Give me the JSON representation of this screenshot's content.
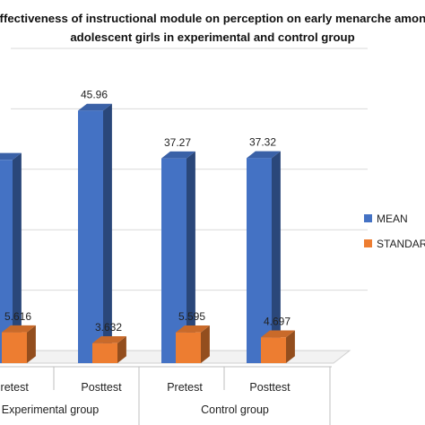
{
  "chart_data": {
    "type": "bar",
    "title_line_1": "Effectiveness of instructional module on perception on early menarche among",
    "title_line_2": "adolescent girls in experimental and control group",
    "categories": [
      "Pretest",
      "Posttest",
      "Pretest",
      "Posttest"
    ],
    "groups": [
      {
        "label": "Experimental group",
        "categories": [
          "Pretest",
          "Posttest"
        ]
      },
      {
        "label": "Control group",
        "categories": [
          "Pretest",
          "Posttest"
        ]
      }
    ],
    "series": [
      {
        "name": "MEAN",
        "color": "#4472c4",
        "values": [
          37.0,
          45.96,
          37.27,
          37.32
        ]
      },
      {
        "name": "STANDARD DEVIATION",
        "color": "#ed7d31",
        "values": [
          5.616,
          3.632,
          5.595,
          4.697
        ]
      }
    ],
    "data_labels": [
      [
        "",
        "45.96",
        "37.27",
        "37.32"
      ],
      [
        "5.616",
        "3.632",
        "5.595",
        "4.697"
      ]
    ],
    "ylim": [
      0,
      55
    ],
    "grid": true,
    "legend_position": "right",
    "projection": "3d-bar"
  }
}
